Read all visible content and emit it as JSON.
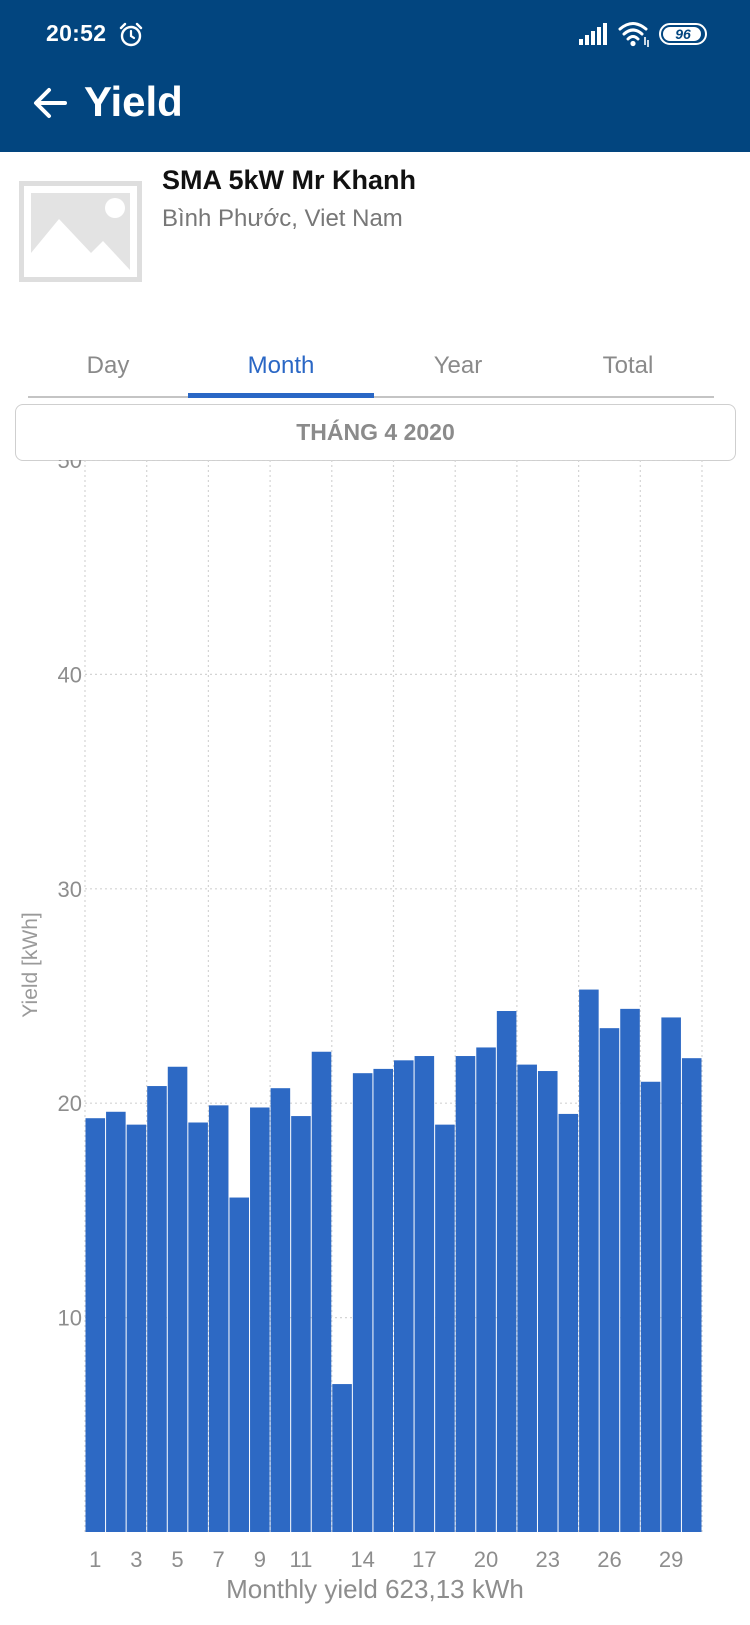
{
  "status_bar": {
    "time": "20:52",
    "battery": "96",
    "icons": [
      "alarm-icon",
      "signal-icon",
      "wifi-icon",
      "battery-icon"
    ]
  },
  "app_bar": {
    "title": "Yield",
    "back_icon": "arrow-left-icon",
    "background_color": "#02457f"
  },
  "plant": {
    "name": "SMA 5kW Mr Khanh",
    "location": "Bình Phước, Viet Nam",
    "image_icon": "image-placeholder-icon"
  },
  "tabs": [
    {
      "label": "Day",
      "active": false
    },
    {
      "label": "Month",
      "active": true
    },
    {
      "label": "Year",
      "active": false
    },
    {
      "label": "Total",
      "active": false
    }
  ],
  "period": {
    "label": "THÁNG 4 2020"
  },
  "colors": {
    "accent": "#2a67c5",
    "bar": "#2d69c4",
    "grid": "#d4d4d4"
  },
  "summary": {
    "text": "Monthly yield 623,13 kWh"
  },
  "chart_data": {
    "type": "bar",
    "ylabel": "Yield [kWh]",
    "xlabel": "",
    "ylim": [
      0,
      50
    ],
    "y_ticks": [
      10,
      20,
      30,
      40,
      50
    ],
    "grid": true,
    "x_tick_labels": [
      "1",
      "3",
      "5",
      "7",
      "9",
      "11",
      "14",
      "17",
      "20",
      "23",
      "26",
      "29"
    ],
    "categories": [
      "1",
      "2",
      "3",
      "4",
      "5",
      "6",
      "7",
      "8",
      "9",
      "10",
      "11",
      "12",
      "13",
      "14",
      "15",
      "16",
      "17",
      "18",
      "19",
      "20",
      "21",
      "22",
      "23",
      "24",
      "25",
      "26",
      "27",
      "28",
      "29",
      "30"
    ],
    "values": [
      19.3,
      19.6,
      19.0,
      20.8,
      21.7,
      19.1,
      19.9,
      15.6,
      19.8,
      20.7,
      19.4,
      22.4,
      6.9,
      21.4,
      21.6,
      22.0,
      22.2,
      19.0,
      22.2,
      22.6,
      24.3,
      21.8,
      21.5,
      19.5,
      25.3,
      23.5,
      24.4,
      21.0,
      24.0,
      22.1
    ]
  }
}
